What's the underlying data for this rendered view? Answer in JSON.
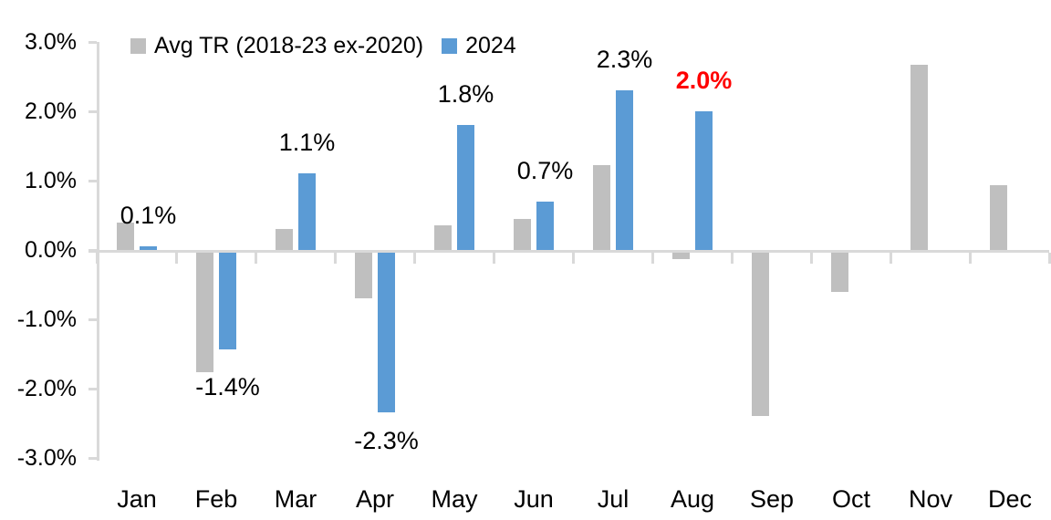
{
  "chart_data": {
    "type": "bar",
    "title": "",
    "categories": [
      "Jan",
      "Feb",
      "Mar",
      "Apr",
      "May",
      "Jun",
      "Jul",
      "Aug",
      "Sep",
      "Oct",
      "Nov",
      "Dec"
    ],
    "series": [
      {
        "name": "Avg TR (2018-23 ex-2020)",
        "color": "#BFBFBF",
        "values": [
          0.4,
          -1.73,
          0.3,
          -0.66,
          0.36,
          0.45,
          1.22,
          -0.09,
          -2.35,
          -0.57,
          2.67,
          0.94
        ]
      },
      {
        "name": "2024",
        "color": "#5B9BD5",
        "values": [
          0.05,
          -1.4,
          1.1,
          -2.3,
          1.8,
          0.7,
          2.3,
          2.0,
          null,
          null,
          null,
          null
        ]
      }
    ],
    "data_labels": [
      {
        "category": "Jan",
        "text": "0.1%",
        "color": "#000000",
        "bold": false
      },
      {
        "category": "Feb",
        "text": "-1.4%",
        "color": "#000000",
        "bold": false
      },
      {
        "category": "Mar",
        "text": "1.1%",
        "color": "#000000",
        "bold": false
      },
      {
        "category": "Apr",
        "text": "-2.3%",
        "color": "#000000",
        "bold": false
      },
      {
        "category": "May",
        "text": "1.8%",
        "color": "#000000",
        "bold": false
      },
      {
        "category": "Jun",
        "text": "0.7%",
        "color": "#000000",
        "bold": false
      },
      {
        "category": "Jul",
        "text": "2.3%",
        "color": "#000000",
        "bold": false
      },
      {
        "category": "Aug",
        "text": "2.0%",
        "color": "#FF0000",
        "bold": true
      }
    ],
    "y_axis": {
      "min": -3,
      "max": 3,
      "step": 1,
      "tick_labels": [
        "3.0%",
        "2.0%",
        "1.0%",
        "0.0%",
        "-1.0%",
        "-2.0%",
        "-3.0%"
      ]
    },
    "x_axis": {
      "tick_labels": [
        "Jan",
        "Feb",
        "Mar",
        "Apr",
        "May",
        "Jun",
        "Jul",
        "Aug",
        "Sep",
        "Oct",
        "Nov",
        "Dec"
      ]
    },
    "legend": {
      "position": "top",
      "items": [
        {
          "label": "Avg TR (2018-23 ex-2020)",
          "color": "#BFBFBF"
        },
        {
          "label": "2024",
          "color": "#5B9BD5"
        }
      ]
    },
    "colors": {
      "axis": "#D9D9D9",
      "text": "#000000",
      "highlight": "#FF0000",
      "background": "#FFFFFF"
    },
    "grid": false
  }
}
